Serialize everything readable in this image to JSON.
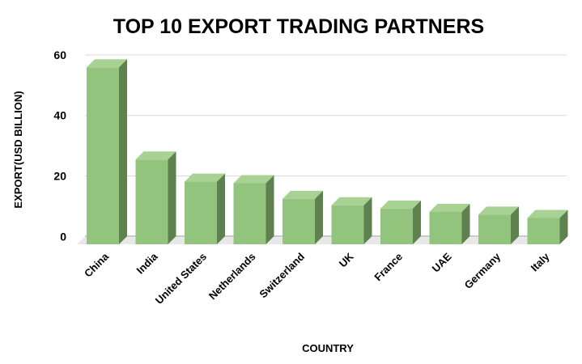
{
  "chart_data": {
    "type": "bar",
    "style": "3d-column",
    "title": "TOP 10 EXPORT TRADING PARTNERS",
    "xlabel": "COUNTRY",
    "ylabel": "EXPORT(USD BILLION)",
    "categories": [
      "China",
      "India",
      "United States",
      "Netherlands",
      "Switzerland",
      "UK",
      "France",
      "UAE",
      "Germany",
      "Italy"
    ],
    "values": [
      58.5,
      28,
      20.7,
      20.2,
      15,
      12.9,
      11.8,
      10.7,
      9.8,
      8.7
    ],
    "ylim": [
      0,
      60
    ],
    "yticks": [
      "0",
      "20",
      "40",
      "60"
    ],
    "grid": true,
    "legend": "none",
    "colors": {
      "front": "#93c47d",
      "top": "#a8d293",
      "side": "#5f8150",
      "grid": "#d9d9d9",
      "floor": "#e8e8e8"
    }
  }
}
